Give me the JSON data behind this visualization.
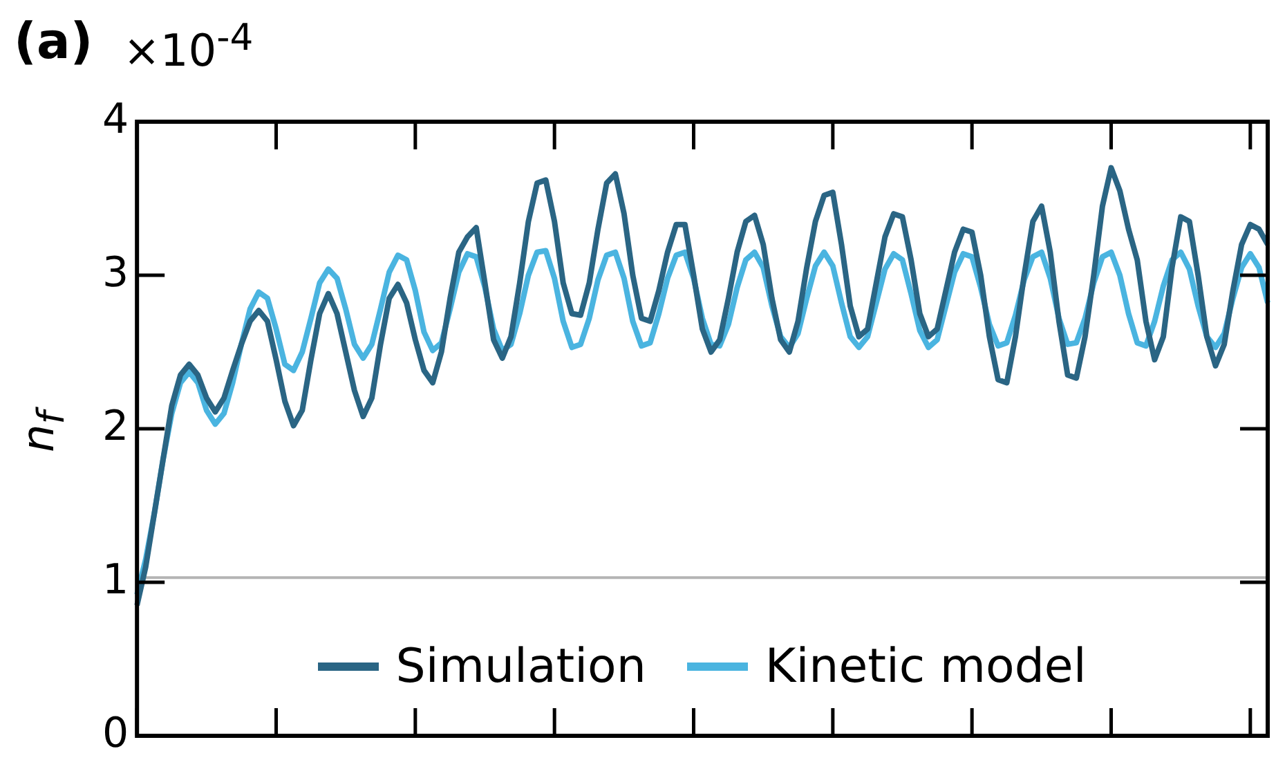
{
  "chart_data": {
    "type": "line",
    "title": "(a)",
    "ylabel": "n$_{f}$",
    "annotations": [
      "×10$^{-4}$"
    ],
    "categories": [
      null,
      null,
      null,
      null,
      null,
      null,
      null,
      null,
      null,
      null,
      null,
      null,
      null,
      null,
      null,
      null,
      null,
      null,
      null,
      null,
      null,
      null,
      null,
      null,
      null,
      null,
      null,
      null,
      null,
      null,
      null,
      null,
      null,
      null,
      null,
      null,
      null,
      null,
      null,
      null,
      null,
      null,
      null,
      null,
      null,
      null,
      null,
      null,
      null,
      null,
      null,
      null,
      null,
      null,
      null,
      null,
      null,
      null,
      null,
      null,
      null,
      null,
      null,
      null,
      null,
      null,
      null,
      null,
      null,
      null,
      null,
      null,
      null,
      null,
      null,
      null,
      null,
      null,
      null,
      null,
      null,
      null,
      null,
      null,
      null,
      null,
      null,
      null,
      null,
      null,
      null,
      null,
      null,
      null,
      null,
      null,
      null,
      null,
      null,
      null,
      null,
      null,
      null,
      null,
      null,
      null,
      null,
      null,
      null,
      null,
      null,
      null,
      null,
      null,
      null,
      null,
      null,
      null,
      null,
      null,
      null,
      null,
      null,
      null,
      null,
      null,
      null,
      null,
      null,
      null,
      null
    ],
    "series": [
      {
        "name": "Simulation",
        "color": "#2a6584",
        "values": [
          0.85,
          1.1,
          1.45,
          1.8,
          2.15,
          2.35,
          2.42,
          2.35,
          2.2,
          2.11,
          2.2,
          2.38,
          2.55,
          2.7,
          2.77,
          2.7,
          2.45,
          2.18,
          2.02,
          2.12,
          2.45,
          2.75,
          2.88,
          2.75,
          2.5,
          2.25,
          2.08,
          2.2,
          2.55,
          2.85,
          2.94,
          2.82,
          2.58,
          2.38,
          2.3,
          2.5,
          2.85,
          3.15,
          3.25,
          3.31,
          2.95,
          2.58,
          2.46,
          2.6,
          2.95,
          3.35,
          3.6,
          3.62,
          3.35,
          2.95,
          2.75,
          2.74,
          2.95,
          3.3,
          3.6,
          3.66,
          3.4,
          3.0,
          2.72,
          2.7,
          2.9,
          3.15,
          3.33,
          3.33,
          3.0,
          2.65,
          2.5,
          2.58,
          2.85,
          3.15,
          3.35,
          3.39,
          3.2,
          2.85,
          2.58,
          2.5,
          2.7,
          3.05,
          3.35,
          3.52,
          3.54,
          3.2,
          2.8,
          2.6,
          2.65,
          2.95,
          3.25,
          3.4,
          3.38,
          3.1,
          2.75,
          2.6,
          2.65,
          2.9,
          3.15,
          3.3,
          3.28,
          3.0,
          2.6,
          2.32,
          2.3,
          2.6,
          3.0,
          3.35,
          3.45,
          3.15,
          2.7,
          2.35,
          2.33,
          2.6,
          3.0,
          3.45,
          3.7,
          3.55,
          3.3,
          3.1,
          2.7,
          2.45,
          2.6,
          3.05,
          3.38,
          3.35,
          3.0,
          2.6,
          2.41,
          2.55,
          2.9,
          3.2,
          3.33,
          3.3,
          3.2
        ]
      },
      {
        "name": "Kinetic model",
        "color": "#4ab4e0",
        "values": [
          0.92,
          1.15,
          1.45,
          1.8,
          2.1,
          2.3,
          2.37,
          2.3,
          2.12,
          2.03,
          2.1,
          2.3,
          2.55,
          2.78,
          2.89,
          2.85,
          2.65,
          2.42,
          2.38,
          2.5,
          2.72,
          2.95,
          3.04,
          2.98,
          2.78,
          2.55,
          2.46,
          2.55,
          2.78,
          3.02,
          3.13,
          3.1,
          2.9,
          2.63,
          2.51,
          2.56,
          2.78,
          3.02,
          3.14,
          3.12,
          2.92,
          2.65,
          2.51,
          2.55,
          2.75,
          3.0,
          3.15,
          3.16,
          2.98,
          2.7,
          2.53,
          2.55,
          2.72,
          2.97,
          3.13,
          3.15,
          2.98,
          2.7,
          2.54,
          2.56,
          2.75,
          2.98,
          3.13,
          3.15,
          2.98,
          2.72,
          2.55,
          2.54,
          2.68,
          2.92,
          3.1,
          3.15,
          3.05,
          2.8,
          2.6,
          2.53,
          2.62,
          2.85,
          3.06,
          3.15,
          3.06,
          2.82,
          2.6,
          2.53,
          2.6,
          2.82,
          3.04,
          3.14,
          3.1,
          2.88,
          2.64,
          2.53,
          2.58,
          2.8,
          3.02,
          3.14,
          3.12,
          2.92,
          2.68,
          2.54,
          2.56,
          2.74,
          2.97,
          3.12,
          3.15,
          2.98,
          2.72,
          2.55,
          2.56,
          2.72,
          2.95,
          3.12,
          3.15,
          3.0,
          2.75,
          2.56,
          2.54,
          2.7,
          2.93,
          3.1,
          3.15,
          3.04,
          2.8,
          2.6,
          2.53,
          2.62,
          2.85,
          3.05,
          3.14,
          3.05,
          2.82
        ]
      }
    ],
    "ylim": [
      0,
      4
    ],
    "yticks": [
      0,
      1,
      2,
      3,
      4
    ],
    "tick_labels": "y",
    "grid": false,
    "legend": "bottom",
    "marker": "none",
    "line_style": "solid",
    "ref_lines": [
      {
        "axis": "y",
        "value": 1.03,
        "color": "#b4b4b4"
      }
    ]
  }
}
